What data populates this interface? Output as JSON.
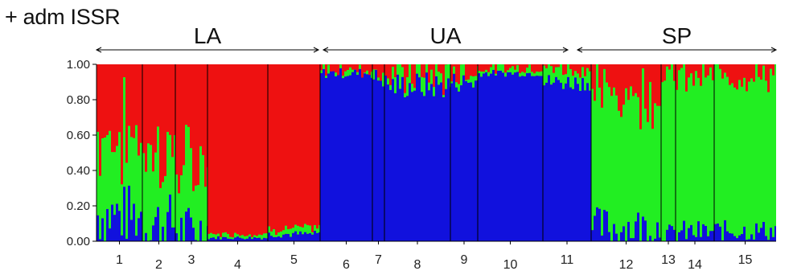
{
  "title": "+ adm ISSR",
  "colors": {
    "red": "#ee1111",
    "green": "#22ee22",
    "blue": "#1111dd"
  },
  "chart_data": {
    "type": "stacked-bar",
    "title": "+ adm ISSR",
    "ylim": [
      0,
      1
    ],
    "yticks": [
      "1.00",
      "0.80",
      "0.60",
      "0.40",
      "0.20",
      "0.00"
    ],
    "series": [
      {
        "name": "",
        "color": "red"
      },
      {
        "name": "",
        "color": "green"
      },
      {
        "name": "",
        "color": "blue"
      }
    ],
    "regions": [
      {
        "label": "LA",
        "populations": [
          1,
          5
        ]
      },
      {
        "label": "UA",
        "populations": [
          6,
          11
        ]
      },
      {
        "label": "SP",
        "populations": [
          12,
          15
        ]
      }
    ],
    "populations": [
      {
        "label": "1",
        "blue": 0.15,
        "green": 0.45,
        "jitter": 0.18
      },
      {
        "label": "2",
        "blue": 0.1,
        "green": 0.4,
        "jitter": 0.18
      },
      {
        "label": "3",
        "blue": 0.06,
        "green": 0.35,
        "jitter": 0.15
      },
      {
        "label": "4",
        "blue": 0.02,
        "green": 0.02,
        "jitter": 0.01
      },
      {
        "label": "5",
        "blue": 0.04,
        "green": 0.03,
        "jitter": 0.02
      },
      {
        "label": "6",
        "blue": 0.95,
        "green": 0.02,
        "jitter": 0.03
      },
      {
        "label": "7",
        "blue": 0.92,
        "green": 0.05,
        "jitter": 0.06
      },
      {
        "label": "8",
        "blue": 0.88,
        "green": 0.07,
        "jitter": 0.08
      },
      {
        "label": "9",
        "blue": 0.9,
        "green": 0.06,
        "jitter": 0.06
      },
      {
        "label": "10",
        "blue": 0.95,
        "green": 0.03,
        "jitter": 0.02
      },
      {
        "label": "11",
        "blue": 0.9,
        "green": 0.08,
        "jitter": 0.05
      },
      {
        "label": "12",
        "blue": 0.08,
        "green": 0.75,
        "jitter": 0.12
      },
      {
        "label": "13",
        "blue": 0.04,
        "green": 0.9,
        "jitter": 0.06
      },
      {
        "label": "14",
        "blue": 0.05,
        "green": 0.88,
        "jitter": 0.07
      },
      {
        "label": "15",
        "blue": 0.06,
        "green": 0.88,
        "jitter": 0.06
      }
    ]
  }
}
